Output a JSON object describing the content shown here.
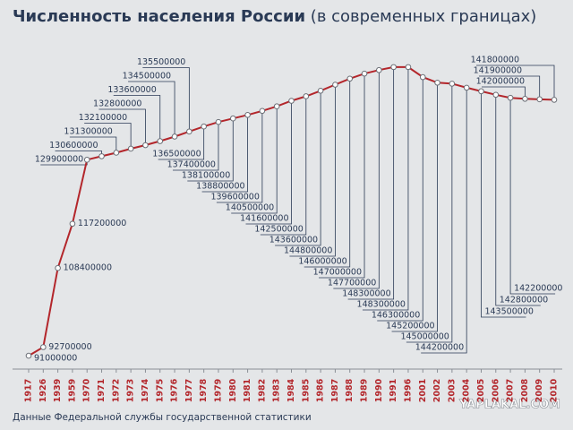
{
  "chart_data": {
    "type": "line",
    "title": "Численность населения России",
    "subtitle": "(в современных границах)",
    "source": "Данные Федеральной службы государственной статистики",
    "watermark": "YAPLAKAL.COM",
    "categories": [
      "1917",
      "1926",
      "1939",
      "1959",
      "1970",
      "1971",
      "1972",
      "1973",
      "1974",
      "1975",
      "1976",
      "1977",
      "1978",
      "1979",
      "1980",
      "1981",
      "1982",
      "1983",
      "1984",
      "1985",
      "1986",
      "1987",
      "1988",
      "1989",
      "1990",
      "1991",
      "1996",
      "2001",
      "2002",
      "2003",
      "2004",
      "2005",
      "2006",
      "2007",
      "2008",
      "2009",
      "2010"
    ],
    "values": [
      91000000,
      92700000,
      108400000,
      117200000,
      129900000,
      130600000,
      131300000,
      132100000,
      132800000,
      133600000,
      134500000,
      135500000,
      136500000,
      137400000,
      138100000,
      138800000,
      139600000,
      140500000,
      141600000,
      142500000,
      143600000,
      144800000,
      146000000,
      147000000,
      147700000,
      148300000,
      148300000,
      146300000,
      145200000,
      145000000,
      144200000,
      143500000,
      142800000,
      142200000,
      142000000,
      141900000,
      141800000
    ],
    "color": "#b3262b",
    "ylim": [
      88700000,
      154500000
    ]
  }
}
